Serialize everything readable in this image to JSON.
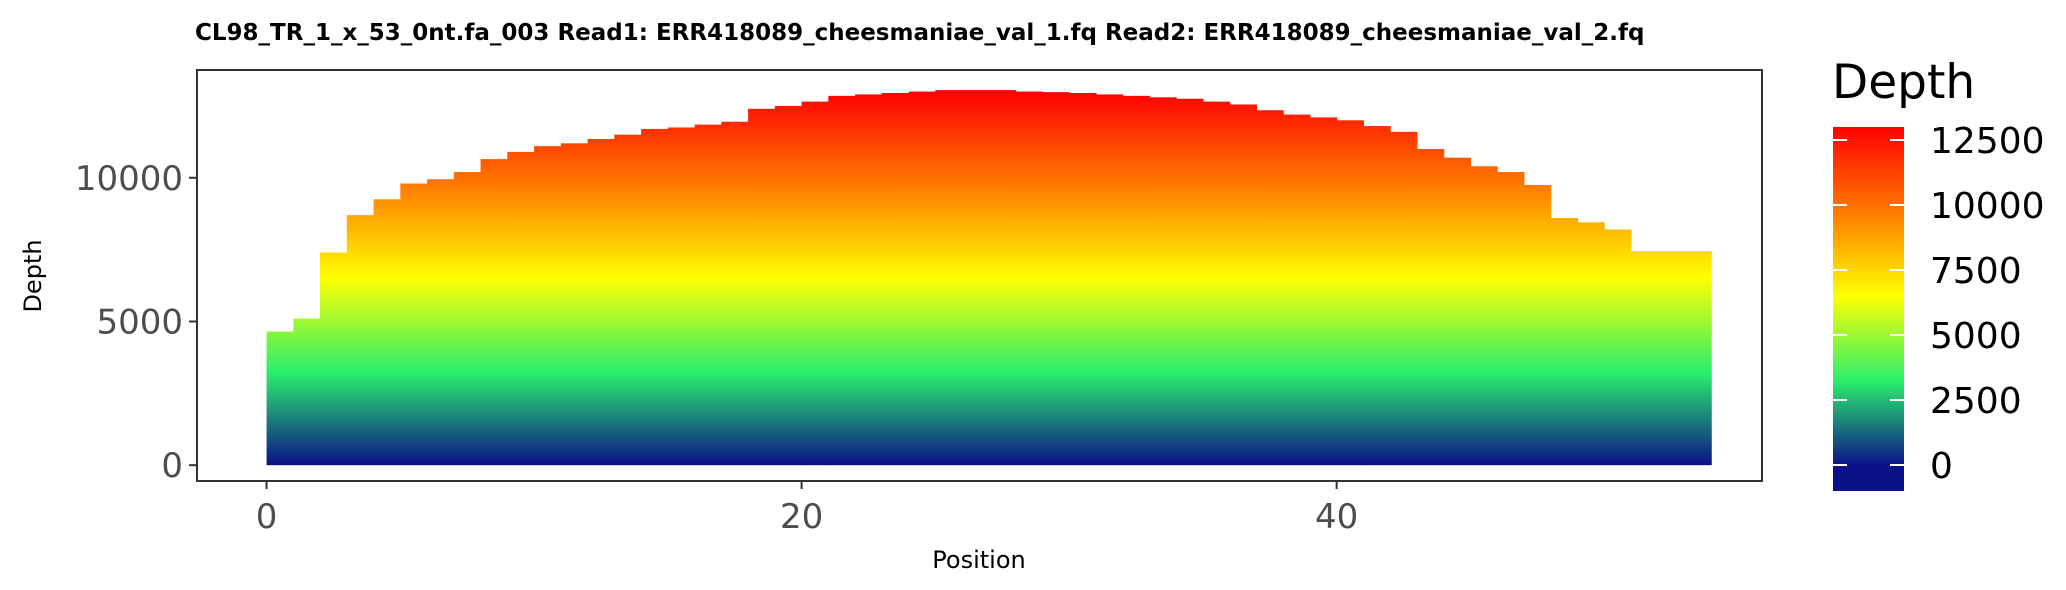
{
  "chart_data": {
    "type": "area",
    "title": "CL98_TR_1_x_53_0nt.fa_003   Read1: ERR418089_cheesmaniae_val_1.fq   Read2: ERR418089_cheesmaniae_val_2.fq",
    "xlabel": "Position",
    "ylabel": "Depth",
    "xlim": [
      -2.6,
      55.9
    ],
    "ylim": [
      -550,
      13750
    ],
    "x_ticks": [
      0,
      20,
      40
    ],
    "y_ticks": [
      0,
      5000,
      10000
    ],
    "grid": false,
    "legend": {
      "title": "Depth",
      "position": "right",
      "ticks": [
        0,
        2500,
        5000,
        7500,
        10000,
        12500
      ],
      "range": [
        -1000,
        13000
      ],
      "colors": [
        "#0b1188",
        "#2bf06c",
        "#ffff00",
        "#ff7a00",
        "#ff0000"
      ]
    },
    "x": [
      0,
      1,
      2,
      3,
      4,
      5,
      6,
      7,
      8,
      9,
      10,
      11,
      12,
      13,
      14,
      15,
      16,
      17,
      18,
      19,
      20,
      21,
      22,
      23,
      24,
      25,
      26,
      27,
      28,
      29,
      30,
      31,
      32,
      33,
      34,
      35,
      36,
      37,
      38,
      39,
      40,
      41,
      42,
      43,
      44,
      45,
      46,
      47,
      48,
      49,
      50,
      51,
      52,
      53
    ],
    "values": [
      4650,
      5100,
      7400,
      8700,
      9250,
      9800,
      9950,
      10200,
      10650,
      10900,
      11100,
      11200,
      11350,
      11500,
      11700,
      11750,
      11850,
      11950,
      12400,
      12500,
      12650,
      12850,
      12900,
      12950,
      13000,
      13050,
      13050,
      13050,
      13000,
      12980,
      12950,
      12900,
      12850,
      12800,
      12750,
      12650,
      12550,
      12350,
      12200,
      12100,
      12000,
      11800,
      11600,
      11000,
      10700,
      10400,
      10200,
      9750,
      8600,
      8450,
      8200,
      7450,
      7450,
      7450
    ]
  }
}
